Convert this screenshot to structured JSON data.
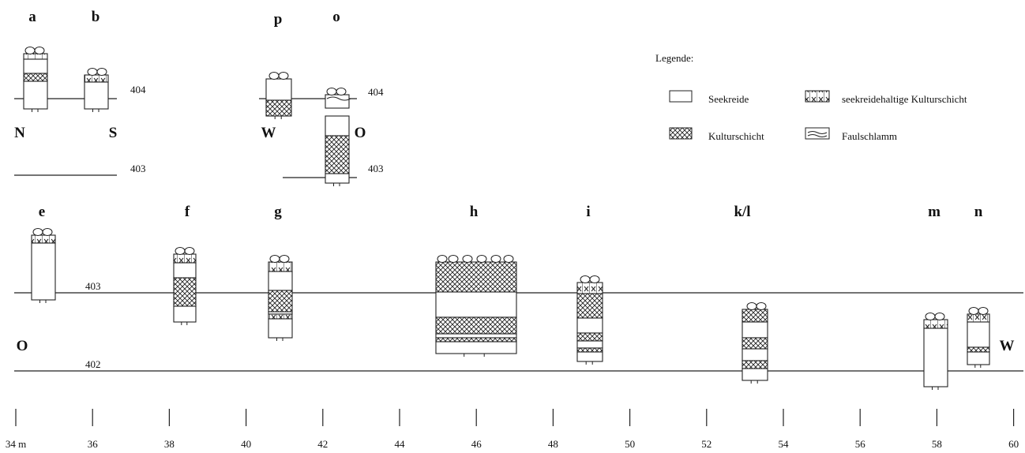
{
  "top_sections": {
    "labels": [
      "a",
      "b",
      "p",
      "o"
    ],
    "directions": [
      "N",
      "S",
      "W",
      "O"
    ],
    "elevations": [
      "404",
      "403",
      "404",
      "403"
    ]
  },
  "legend": {
    "title": "Legende:",
    "items": [
      "Seekreide",
      "seekreidehaltige Kulturschicht",
      "Kulturschicht",
      "Faulschlamm"
    ]
  },
  "main_section": {
    "labels": [
      "e",
      "f",
      "g",
      "h",
      "i",
      "k/l",
      "m",
      "n"
    ],
    "elevations": [
      "403",
      "402"
    ],
    "directions": [
      "O",
      "W"
    ]
  },
  "scale": {
    "ticks": [
      "34 m",
      "36",
      "38",
      "40",
      "42",
      "44",
      "46",
      "48",
      "50",
      "52",
      "54",
      "56",
      "58",
      "60"
    ]
  }
}
